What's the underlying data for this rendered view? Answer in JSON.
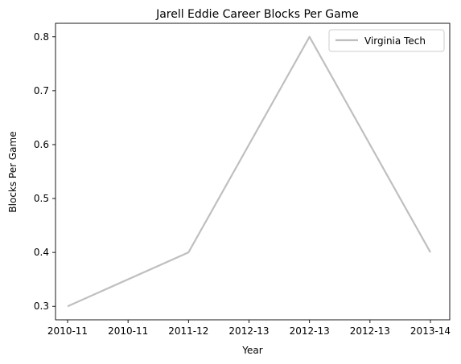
{
  "chart_data": {
    "type": "line",
    "title": "Jarell Eddie Career Blocks Per Game",
    "xlabel": "Year",
    "ylabel": "Blocks Per Game",
    "x_tick_labels": [
      "2010-11",
      "2010-11",
      "2011-12",
      "2012-13",
      "2012-13",
      "2012-13",
      "2013-14"
    ],
    "x": [
      "2010-11",
      "2011-12",
      "2012-13",
      "2013-14"
    ],
    "series": [
      {
        "name": "Virginia Tech",
        "values": [
          0.3,
          0.4,
          0.8,
          0.4
        ],
        "color": "#bfbfbf"
      }
    ],
    "y_ticks": [
      0.3,
      0.4,
      0.5,
      0.6,
      0.7,
      0.8
    ],
    "ylim": [
      0.275,
      0.825
    ],
    "grid": false,
    "legend": "top-right"
  }
}
